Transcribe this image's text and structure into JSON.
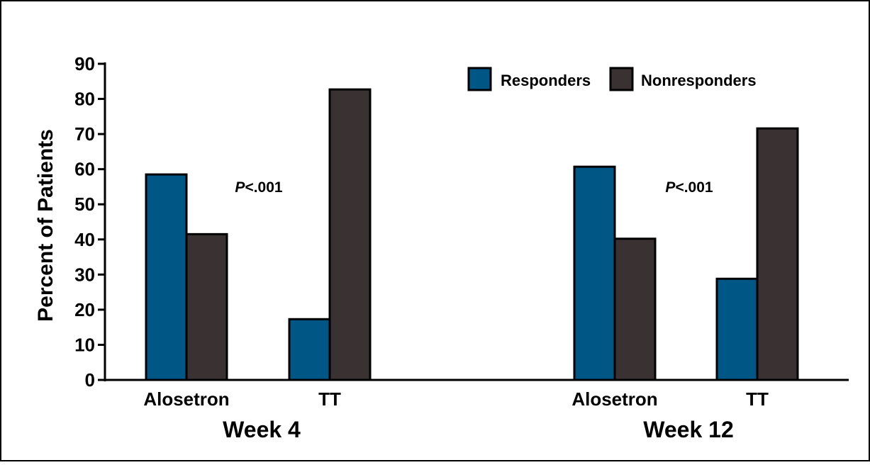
{
  "chart_data": {
    "type": "bar",
    "ylabel": "Percent of Patients",
    "ylim": [
      0,
      90
    ],
    "yticks": [
      0,
      10,
      20,
      30,
      40,
      50,
      60,
      70,
      80,
      90
    ],
    "grid": false,
    "legend_position": "top-right",
    "groups": [
      {
        "label": "Week 4",
        "annotation": {
          "prefix": "P",
          "suffix": "<.001"
        },
        "categories": [
          "Alosetron",
          "TT"
        ],
        "series": [
          {
            "name": "Responders",
            "values": [
              58.5,
              17.3
            ]
          },
          {
            "name": "Nonresponders",
            "values": [
              41.5,
              82.7
            ]
          }
        ]
      },
      {
        "label": "Week 12",
        "annotation": {
          "prefix": "P",
          "suffix": "<.001"
        },
        "categories": [
          "Alosetron",
          "TT"
        ],
        "series": [
          {
            "name": "Responders",
            "values": [
              60.7,
              28.8
            ]
          },
          {
            "name": "Nonresponders",
            "values": [
              40.2,
              71.6
            ]
          }
        ]
      }
    ],
    "legend": [
      "Responders",
      "Nonresponders"
    ],
    "colors": {
      "Responders": "#005685",
      "Nonresponders": "#3a3132",
      "outline": "#000000"
    }
  }
}
